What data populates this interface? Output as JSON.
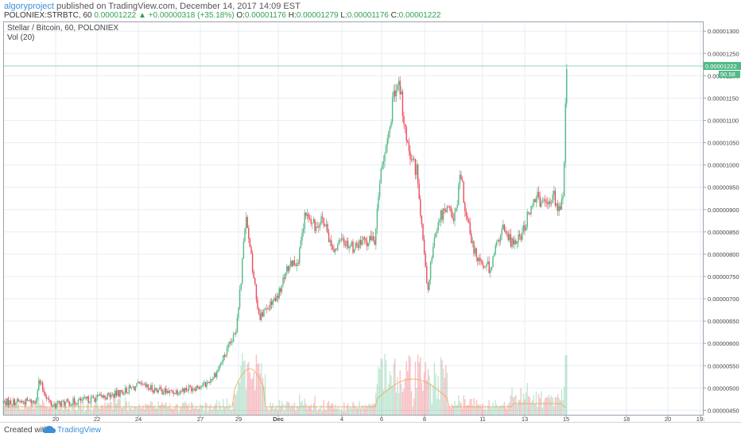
{
  "header": {
    "author": "algoryproject",
    "published_text": "published on TradingView.com, December 14, 2017 14:09 EST",
    "symbol": "POLONIEX:STRBTC, 60",
    "last": "0.00001222",
    "change": "+0.00000318 (+35.18%)",
    "open_label": "O:",
    "open": "0.00001176",
    "high_label": "H:",
    "high": "0.00001279",
    "low_label": "L:",
    "low": "0.00001176",
    "close_label": "C:",
    "close": "0.00001222"
  },
  "legend": {
    "title": "Stellar / Bitcoin, 60, POLONIEX",
    "volume": "Vol (20)"
  },
  "price_labels": {
    "last_price": "0.00001222",
    "volume_value": "50.58"
  },
  "footer": {
    "created_with": "Created with",
    "brand": "TradingView"
  },
  "colors": {
    "up": "#53b987",
    "down": "#eb4d5c",
    "grid": "#e8eef2",
    "price_line": "#53b987",
    "brand": "#3a8fd8"
  },
  "chart_data": {
    "type": "candlestick",
    "title": "Stellar / Bitcoin, 60, POLONIEX",
    "x_tick_labels": [
      "20",
      "22",
      "24",
      "27",
      "29",
      "Dec",
      "4",
      "6",
      "8",
      "11",
      "13",
      "15",
      "18",
      "20",
      "19:"
    ],
    "y_tick_labels": [
      "0.00001300",
      "0.00001250",
      "0.00001200",
      "0.00001150",
      "0.00001100",
      "0.00001050",
      "0.00001000",
      "0.00000950",
      "0.00000900",
      "0.00000850",
      "0.00000800",
      "0.00000750",
      "0.00000700",
      "0.00000650",
      "0.00000600",
      "0.00000550",
      "0.00000500",
      "0.00000450"
    ],
    "ylim": [
      4.4e-06,
      1.32e-05
    ],
    "grid": true,
    "price_anchors": [
      [
        0,
        4.68e-06
      ],
      [
        40,
        4.7e-06
      ],
      [
        45,
        5.15e-06
      ],
      [
        60,
        4.62e-06
      ],
      [
        100,
        4.72e-06
      ],
      [
        140,
        4.85e-06
      ],
      [
        170,
        5.05e-06
      ],
      [
        210,
        4.9e-06
      ],
      [
        255,
        5.08e-06
      ],
      [
        268,
        5.35e-06
      ],
      [
        282,
        5.85e-06
      ],
      [
        292,
        6.2e-06
      ],
      [
        300,
        7.6e-06
      ],
      [
        305,
        8.8e-06
      ],
      [
        312,
        7.9e-06
      ],
      [
        322,
        6.6e-06
      ],
      [
        345,
        7e-06
      ],
      [
        360,
        7.8e-06
      ],
      [
        372,
        7.9e-06
      ],
      [
        380,
        8.9e-06
      ],
      [
        392,
        8.6e-06
      ],
      [
        400,
        8.85e-06
      ],
      [
        415,
        8.1e-06
      ],
      [
        428,
        8.3e-06
      ],
      [
        440,
        8.15e-06
      ],
      [
        455,
        8.28e-06
      ],
      [
        468,
        8.35e-06
      ],
      [
        475,
        9.85e-06
      ],
      [
        485,
        1.08e-05
      ],
      [
        492,
        1.16e-05
      ],
      [
        500,
        1.175e-05
      ],
      [
        505,
        1.08e-05
      ],
      [
        512,
        1.01e-05
      ],
      [
        520,
        9.9e-06
      ],
      [
        526,
        8.6e-06
      ],
      [
        534,
        7.1e-06
      ],
      [
        540,
        8.1e-06
      ],
      [
        548,
        8.8e-06
      ],
      [
        560,
        9e-06
      ],
      [
        568,
        8.8e-06
      ],
      [
        575,
        9.8e-06
      ],
      [
        583,
        8.8e-06
      ],
      [
        590,
        8.2e-06
      ],
      [
        602,
        7.8e-06
      ],
      [
        612,
        7.7e-06
      ],
      [
        622,
        8.3e-06
      ],
      [
        630,
        8.6e-06
      ],
      [
        640,
        8.25e-06
      ],
      [
        652,
        8.4e-06
      ],
      [
        660,
        8.9e-06
      ],
      [
        672,
        9.25e-06
      ],
      [
        682,
        9.05e-06
      ],
      [
        692,
        9.35e-06
      ],
      [
        700,
        8.95e-06
      ],
      [
        705,
        9.4e-06
      ],
      [
        708,
        1.21e-05
      ],
      [
        710,
        1.222e-05
      ]
    ],
    "volume_peak_candle_index": 708
  }
}
